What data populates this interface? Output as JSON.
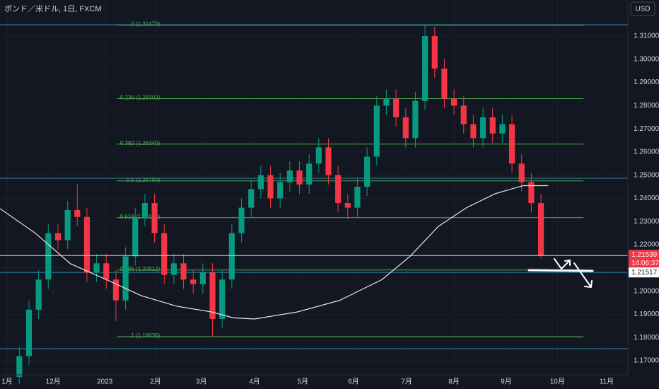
{
  "chart_data": {
    "type": "candlestick",
    "title": "ポンド／米ドル, 1日, FXCM",
    "currency_button": "USD",
    "up_color": "#089981",
    "down_color": "#f23645",
    "xlim": [
      0,
      130
    ],
    "ylim": [
      1.1639,
      1.32556
    ],
    "xticks": [
      {
        "value": 1.46,
        "label": "1月"
      },
      {
        "value": 11,
        "label": "12月"
      },
      {
        "value": 21.7,
        "label": "2023"
      },
      {
        "value": 32.2,
        "label": "2月"
      },
      {
        "value": 41.7,
        "label": "3月"
      },
      {
        "value": 52.7,
        "label": "4月"
      },
      {
        "value": 62.7,
        "label": "5月"
      },
      {
        "value": 73.2,
        "label": "6月"
      },
      {
        "value": 84.2,
        "label": "7月"
      },
      {
        "value": 94,
        "label": "8月"
      },
      {
        "value": 104.8,
        "label": "9月"
      },
      {
        "value": 115.4,
        "label": "10月"
      },
      {
        "value": 125.6,
        "label": "11月"
      }
    ],
    "yticks": [
      {
        "value": 1.17,
        "label": "1.17000"
      },
      {
        "value": 1.18,
        "label": "1.18000"
      },
      {
        "value": 1.19,
        "label": "1.19000"
      },
      {
        "value": 1.2,
        "label": "1.20000"
      },
      {
        "value": 1.21,
        "label": "1.21000"
      },
      {
        "value": 1.22,
        "label": "1.22000"
      },
      {
        "value": 1.23,
        "label": "1.23000"
      },
      {
        "value": 1.24,
        "label": "1.24000"
      },
      {
        "value": 1.25,
        "label": "1.25000"
      },
      {
        "value": 1.26,
        "label": "1.26000"
      },
      {
        "value": 1.27,
        "label": "1.27000"
      },
      {
        "value": 1.28,
        "label": "1.28000"
      },
      {
        "value": 1.29,
        "label": "1.29000"
      },
      {
        "value": 1.3,
        "label": "1.30000"
      },
      {
        "value": 1.31,
        "label": "1.31000"
      }
    ],
    "grid": true,
    "x": [
      4,
      6,
      8,
      10,
      12,
      14,
      16,
      18,
      20,
      22,
      24,
      26,
      28,
      30,
      32,
      34,
      36,
      38,
      40,
      42,
      44,
      46,
      48,
      50,
      52,
      54,
      56,
      58,
      60,
      62,
      64,
      66,
      68,
      70,
      72,
      74,
      76,
      78,
      80,
      82,
      84,
      86,
      88,
      90,
      92,
      94,
      96,
      98,
      100,
      102,
      104,
      106,
      108,
      110,
      112
    ],
    "open": [
      1.163,
      1.172,
      1.192,
      1.205,
      1.225,
      1.222,
      1.235,
      1.232,
      1.208,
      1.212,
      1.205,
      1.196,
      1.215,
      1.232,
      1.238,
      1.225,
      1.207,
      1.212,
      1.205,
      1.203,
      1.208,
      1.188,
      1.205,
      1.225,
      1.236,
      1.244,
      1.25,
      1.24,
      1.247,
      1.252,
      1.246,
      1.255,
      1.262,
      1.25,
      1.238,
      1.236,
      1.245,
      1.258,
      1.28,
      1.283,
      1.275,
      1.266,
      1.282,
      1.31,
      1.296,
      1.283,
      1.28,
      1.272,
      1.266,
      1.275,
      1.268,
      1.272,
      1.255,
      1.247,
      1.238
    ],
    "high": [
      1.176,
      1.196,
      1.209,
      1.229,
      1.229,
      1.239,
      1.246,
      1.236,
      1.216,
      1.216,
      1.209,
      1.219,
      1.236,
      1.242,
      1.242,
      1.229,
      1.216,
      1.216,
      1.209,
      1.212,
      1.212,
      1.209,
      1.229,
      1.24,
      1.248,
      1.254,
      1.254,
      1.251,
      1.256,
      1.256,
      1.259,
      1.266,
      1.266,
      1.254,
      1.242,
      1.249,
      1.262,
      1.284,
      1.287,
      1.287,
      1.279,
      1.286,
      1.3147,
      1.314,
      1.3,
      1.287,
      1.284,
      1.276,
      1.279,
      1.279,
      1.276,
      1.276,
      1.259,
      1.251,
      1.242
    ],
    "low": [
      1.16,
      1.168,
      1.188,
      1.201,
      1.218,
      1.218,
      1.228,
      1.204,
      1.204,
      1.201,
      1.187,
      1.192,
      1.211,
      1.228,
      1.221,
      1.203,
      1.203,
      1.201,
      1.199,
      1.199,
      1.1803,
      1.184,
      1.201,
      1.221,
      1.232,
      1.24,
      1.236,
      1.236,
      1.243,
      1.242,
      1.242,
      1.251,
      1.246,
      1.234,
      1.231,
      1.232,
      1.241,
      1.254,
      1.276,
      1.271,
      1.262,
      1.262,
      1.278,
      1.292,
      1.279,
      1.276,
      1.268,
      1.262,
      1.262,
      1.264,
      1.264,
      1.251,
      1.243,
      1.234,
      1.214
    ],
    "close": [
      1.172,
      1.192,
      1.205,
      1.225,
      1.222,
      1.235,
      1.232,
      1.208,
      1.212,
      1.205,
      1.196,
      1.215,
      1.232,
      1.238,
      1.225,
      1.207,
      1.212,
      1.205,
      1.203,
      1.208,
      1.188,
      1.205,
      1.225,
      1.236,
      1.244,
      1.25,
      1.24,
      1.247,
      1.252,
      1.246,
      1.255,
      1.262,
      1.25,
      1.238,
      1.236,
      1.245,
      1.258,
      1.28,
      1.283,
      1.275,
      1.266,
      1.282,
      1.31,
      1.296,
      1.283,
      1.28,
      1.272,
      1.266,
      1.275,
      1.268,
      1.272,
      1.255,
      1.247,
      1.238,
      1.2154
    ],
    "moving_average": {
      "color": "#e8e8e8",
      "x": [
        0,
        7.3,
        14.6,
        22,
        29.3,
        36.6,
        43.9,
        48.3,
        52.7,
        61.5,
        70.3,
        79.1,
        84.9,
        90.8,
        96.6,
        102.5,
        108.3,
        113.5
      ],
      "values": [
        1.2356,
        1.225,
        1.2118,
        1.205,
        1.198,
        1.1935,
        1.191,
        1.1885,
        1.188,
        1.191,
        1.196,
        1.205,
        1.215,
        1.228,
        1.236,
        1.242,
        1.2455,
        1.2455
      ]
    },
    "fib_color": "#4caf50",
    "fib_xlim": [
      24.2,
      120.8
    ],
    "fib_levels": [
      {
        "value": 1.31473,
        "label": "0 (1.31473)"
      },
      {
        "value": 1.28302,
        "label": "0.236 (1.28302)"
      },
      {
        "value": 1.2634,
        "label": "0.382 (1.26340)"
      },
      {
        "value": 1.24754,
        "label": "0.5 (1.24754)"
      },
      {
        "value": 1.23169,
        "label": "0.618 (1.23169)"
      },
      {
        "value": 1.20912,
        "label": "0.786 (1.20912)"
      },
      {
        "value": 1.18036,
        "label": "1 (1.18036)"
      }
    ],
    "horizontal_line_color": "#2a8ba8",
    "horizontal_lines": [
      1.3149,
      1.2487,
      1.2081,
      1.1752
    ],
    "last_price": {
      "value": 1.21539,
      "label": "1.21539"
    },
    "countdown": "14:06:37",
    "secondary_price_label": "1.21517"
  }
}
